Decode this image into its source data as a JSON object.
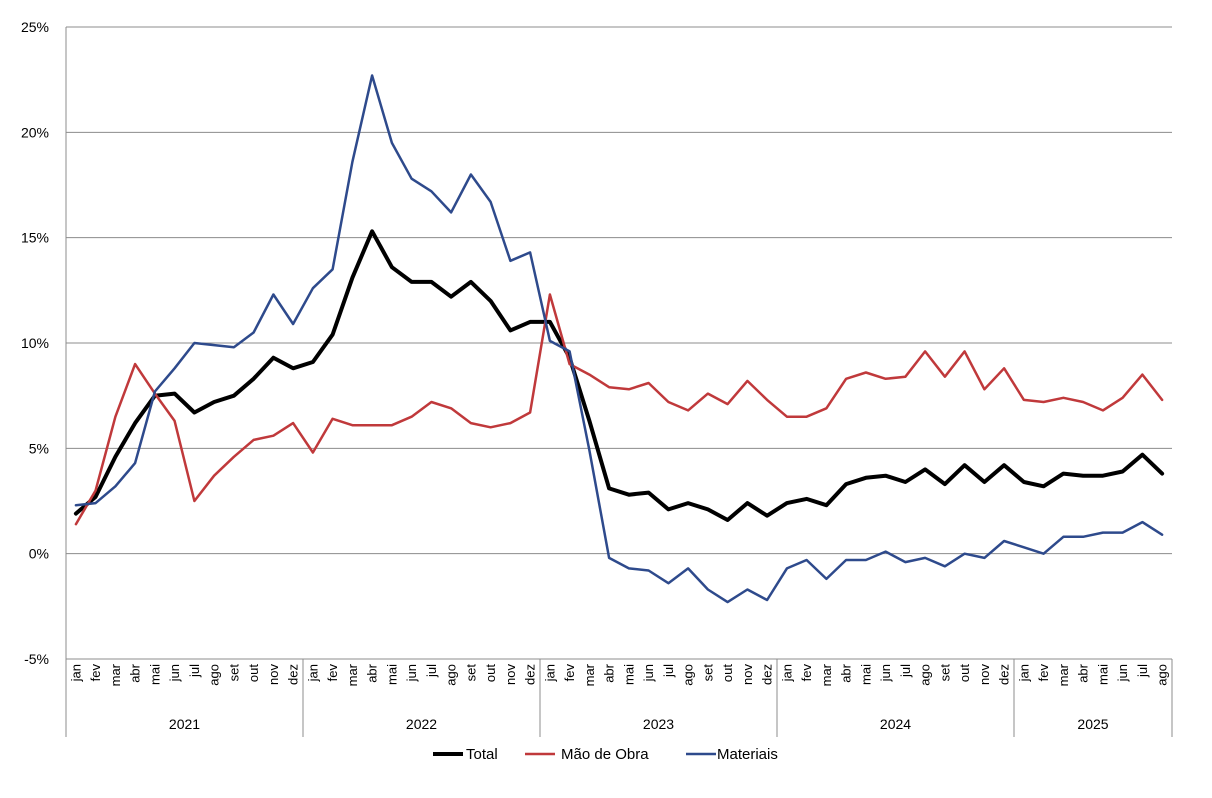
{
  "chart_data": {
    "type": "line",
    "title": "",
    "xlabel": "",
    "ylabel": "",
    "ylim": [
      -5,
      25
    ],
    "yticks": [
      -5,
      0,
      5,
      10,
      15,
      20,
      25
    ],
    "ytick_labels": [
      "-5%",
      "0%",
      "5%",
      "10%",
      "15%",
      "20%",
      "25%"
    ],
    "grid": "horizontal",
    "legend_position": "bottom",
    "months": [
      "jan",
      "fev",
      "mar",
      "abr",
      "mai",
      "jun",
      "jul",
      "ago",
      "set",
      "out",
      "nov",
      "dez",
      "jan",
      "fev",
      "mar",
      "abr",
      "mai",
      "jun",
      "jul",
      "ago",
      "set",
      "out",
      "nov",
      "dez",
      "jan",
      "fev",
      "mar",
      "abr",
      "mai",
      "jun",
      "jul",
      "ago",
      "set",
      "out",
      "nov",
      "dez",
      "jan",
      "fev",
      "mar",
      "abr",
      "mai",
      "jun",
      "jul",
      "ago",
      "set",
      "out",
      "nov",
      "dez",
      "jan",
      "fev",
      "mar",
      "abr",
      "mai",
      "jun",
      "jul",
      "ago"
    ],
    "years": [
      "2021",
      "2022",
      "2023",
      "2024",
      "2025"
    ],
    "series": [
      {
        "name": "Total",
        "color": "#000000",
        "values": [
          1.9,
          2.7,
          4.6,
          6.2,
          7.5,
          7.6,
          6.7,
          7.2,
          7.5,
          8.3,
          9.3,
          8.8,
          9.1,
          10.4,
          13.1,
          15.3,
          13.6,
          12.9,
          12.9,
          12.2,
          12.9,
          12.0,
          10.6,
          11.0,
          11.0,
          9.3,
          6.3,
          3.1,
          2.8,
          2.9,
          2.1,
          2.4,
          2.1,
          1.6,
          2.4,
          1.8,
          2.4,
          2.6,
          2.3,
          3.3,
          3.6,
          3.7,
          3.4,
          4.0,
          3.3,
          4.2,
          3.4,
          4.2,
          3.4,
          3.2,
          3.8,
          3.7,
          3.7,
          3.9,
          4.7,
          3.8
        ]
      },
      {
        "name": "Mão de Obra",
        "color": "#c0393b",
        "values": [
          1.4,
          3.0,
          6.5,
          9.0,
          7.6,
          6.3,
          2.5,
          3.7,
          4.6,
          5.4,
          5.6,
          6.2,
          4.8,
          6.4,
          6.1,
          6.1,
          6.1,
          6.5,
          7.2,
          6.9,
          6.2,
          6.0,
          6.2,
          6.7,
          12.3,
          9.0,
          8.5,
          7.9,
          7.8,
          8.1,
          7.2,
          6.8,
          7.6,
          7.1,
          8.2,
          7.3,
          6.5,
          6.5,
          6.9,
          8.3,
          8.6,
          8.3,
          8.4,
          9.6,
          8.4,
          9.6,
          7.8,
          8.8,
          7.3,
          7.2,
          7.4,
          7.2,
          6.8,
          7.4,
          8.5,
          7.3
        ]
      },
      {
        "name": "Materiais",
        "color": "#2e4a8c",
        "values": [
          2.3,
          2.4,
          3.2,
          4.3,
          7.7,
          8.8,
          10.0,
          9.9,
          9.8,
          10.5,
          12.3,
          10.9,
          12.6,
          13.5,
          18.6,
          22.7,
          19.5,
          17.8,
          17.2,
          16.2,
          18.0,
          16.7,
          13.9,
          14.3,
          10.1,
          9.6,
          4.9,
          -0.2,
          -0.7,
          -0.8,
          -1.4,
          -0.7,
          -1.7,
          -2.3,
          -1.7,
          -2.2,
          -0.7,
          -0.3,
          -1.2,
          -0.3,
          -0.3,
          0.1,
          -0.4,
          -0.2,
          -0.6,
          0.0,
          -0.2,
          0.6,
          0.3,
          0.0,
          0.8,
          0.8,
          1.0,
          1.0,
          1.5,
          0.9
        ]
      }
    ]
  }
}
